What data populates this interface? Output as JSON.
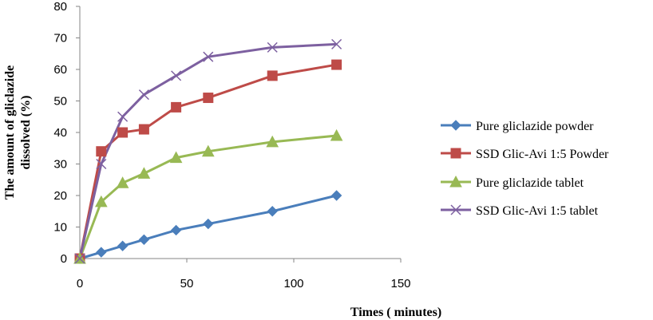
{
  "chart_data": {
    "type": "line",
    "title": "",
    "xlabel": "Times ( minutes)",
    "ylabel": "The amount of gliclazide dissolved (%)",
    "ylabel_lines": [
      "The amount of gliclazide",
      "dissolved (%)"
    ],
    "xlim": [
      0,
      150
    ],
    "ylim": [
      0,
      80
    ],
    "xticks": [
      0,
      50,
      100,
      150
    ],
    "yticks": [
      0,
      10,
      20,
      30,
      40,
      50,
      60,
      70,
      80
    ],
    "grid": false,
    "legend_position": "right",
    "x": [
      0,
      10,
      20,
      30,
      45,
      60,
      90,
      120
    ],
    "series": [
      {
        "name": "Pure gliclazide powder",
        "color": "#4a7ebb",
        "marker": "diamond",
        "values": [
          0,
          2,
          4,
          6,
          9,
          11,
          15,
          20
        ]
      },
      {
        "name": "SSD Glic-Avi 1:5 Powder",
        "color": "#be4b48",
        "marker": "square",
        "values": [
          0,
          34,
          40,
          41,
          48,
          51,
          58,
          61.5
        ]
      },
      {
        "name": "Pure gliclazide tablet",
        "color": "#98b954",
        "marker": "triangle",
        "values": [
          0,
          18,
          24,
          27,
          32,
          34,
          37,
          39
        ]
      },
      {
        "name": "SSD Glic-Avi 1:5 tablet",
        "color": "#7d60a0",
        "marker": "x",
        "values": [
          0,
          30,
          45,
          52,
          58,
          64,
          67,
          68
        ]
      }
    ]
  }
}
